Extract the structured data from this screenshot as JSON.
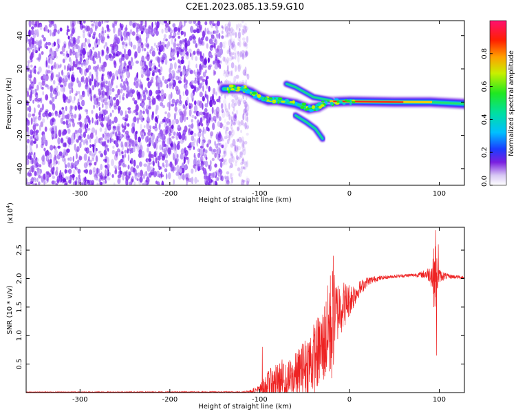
{
  "title": "C2E1.2023.085.13.59.G10",
  "colors": {
    "snr_line": "#ee2222",
    "axis": "#000000",
    "spectrogram_noise": "#7a22ee"
  },
  "chart_data": [
    {
      "type": "heatmap",
      "name": "spectrogram",
      "xlabel": "Height of straight line (km)",
      "ylabel": "Frequency (Hz)",
      "xlim": [
        -360,
        128
      ],
      "ylim": [
        -50,
        49
      ],
      "xticks": [
        -300,
        -200,
        -100,
        0,
        100
      ],
      "xtick_labels": [
        "-300",
        "-200",
        "-100",
        "0",
        "100"
      ],
      "yticks": [
        -40,
        -20,
        0,
        20,
        40
      ],
      "ytick_labels": [
        "-40",
        "-20",
        "0",
        "20",
        "40"
      ],
      "noise_region_x": [
        -360,
        -122
      ],
      "signal_tracks": [
        {
          "label": "main",
          "points": [
            [
              -140,
              8
            ],
            [
              -120,
              8
            ],
            [
              -110,
              6
            ],
            [
              -100,
              3
            ],
            [
              -90,
              1
            ],
            [
              -80,
              1
            ],
            [
              -60,
              -1
            ],
            [
              -45,
              -4
            ],
            [
              -35,
              -3
            ],
            [
              -25,
              0
            ],
            [
              0,
              0.5
            ],
            [
              50,
              0
            ],
            [
              90,
              0
            ],
            [
              128,
              -1
            ]
          ]
        },
        {
          "label": "upper-branch",
          "points": [
            [
              -70,
              11
            ],
            [
              -60,
              9
            ],
            [
              -50,
              6
            ],
            [
              -40,
              3
            ],
            [
              -30,
              2
            ],
            [
              -20,
              1
            ]
          ]
        },
        {
          "label": "lower-branch",
          "points": [
            [
              -60,
              -8
            ],
            [
              -48,
              -12
            ],
            [
              -38,
              -16
            ],
            [
              -30,
              -22
            ]
          ]
        }
      ],
      "colorbar": {
        "label": "Normalized spectral amplitude",
        "range": [
          0,
          1
        ],
        "ticks": [
          0.0,
          0.2,
          0.4,
          0.6,
          0.8
        ],
        "tick_labels": [
          "0.0",
          "0.2",
          "0.4",
          "0.6",
          "0.8"
        ]
      }
    },
    {
      "type": "line",
      "name": "snr",
      "xlabel": "Height of straight line (km)",
      "ylabel": "SNR (10 * v/v)",
      "scale_label": "(x10",
      "scale_exp": "4",
      "xlim": [
        -360,
        128
      ],
      "ylim": [
        0,
        2.9
      ],
      "xticks": [
        -300,
        -200,
        -100,
        0,
        100
      ],
      "xtick_labels": [
        "-300",
        "-200",
        "-100",
        "0",
        "100"
      ],
      "yticks": [
        0.5,
        1.0,
        1.5,
        2.0,
        2.5
      ],
      "ytick_labels": [
        "0.5",
        "1.0",
        "1.5",
        "2.0",
        "2.5"
      ],
      "envelope": {
        "x": [
          -360,
          -120,
          -110,
          -100,
          -90,
          -80,
          -70,
          -60,
          -50,
          -40,
          -30,
          -25,
          -20,
          -15,
          -10,
          0,
          10,
          20,
          30,
          40,
          50,
          60,
          70,
          80,
          90,
          95,
          100,
          110,
          128
        ],
        "base": [
          0.01,
          0.01,
          0.02,
          0.04,
          0.12,
          0.18,
          0.2,
          0.3,
          0.45,
          0.6,
          0.8,
          1.0,
          1.2,
          1.4,
          1.5,
          1.62,
          1.8,
          1.95,
          2.0,
          2.02,
          2.04,
          2.05,
          2.06,
          2.07,
          2.08,
          2.05,
          2.05,
          2.04,
          2.02
        ],
        "jitter": [
          0.005,
          0.01,
          0.03,
          0.1,
          0.28,
          0.35,
          0.32,
          0.4,
          0.5,
          0.62,
          0.7,
          0.8,
          1.1,
          0.6,
          0.5,
          0.3,
          0.15,
          0.08,
          0.05,
          0.03,
          0.03,
          0.03,
          0.03,
          0.05,
          0.15,
          0.6,
          0.12,
          0.04,
          0.03
        ]
      },
      "spikes": [
        [
          -97,
          0.8
        ],
        [
          -75,
          0.58
        ],
        [
          -40,
          0.88
        ],
        [
          -33,
          1.25
        ],
        [
          -22,
          1.75
        ],
        [
          -18,
          2.4
        ],
        [
          -17,
          1.9
        ],
        [
          -10,
          1.6
        ],
        [
          -5,
          1.7
        ],
        [
          96,
          2.85
        ],
        [
          97,
          0.65
        ],
        [
          99,
          2.6
        ],
        [
          94,
          1.5
        ]
      ]
    }
  ]
}
